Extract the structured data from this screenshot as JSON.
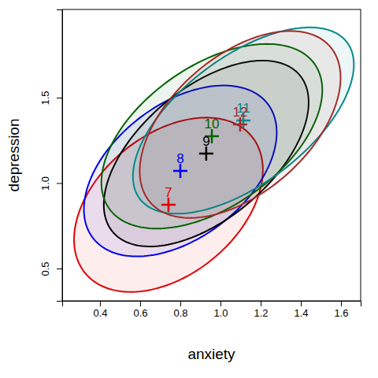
{
  "chart_data": {
    "type": "data_ellipse",
    "x_label": "anxiety",
    "y_label": "depression",
    "xlim": [
      0.212,
      1.698
    ],
    "ylim": [
      0.311,
      2.016
    ],
    "xticks": [
      0.4,
      0.6,
      0.8,
      1.2,
      1.4,
      1.6,
      {
        "value": 1,
        "label": "1.0"
      }
    ],
    "yticks": [
      0.5,
      {
        "value": 1,
        "label": "1.0"
      },
      1.5
    ],
    "marker": "plus",
    "series": [
      {
        "name": "7",
        "color": "#e00000",
        "x": 0.741,
        "y": 0.873,
        "x_halfwidth": 0.47,
        "y_halfheight": 0.51,
        "correlation": 0.4
      },
      {
        "name": "8",
        "color": "#0000ee",
        "x": 0.8,
        "y": 1.071,
        "x_halfwidth": 0.48,
        "y_halfheight": 0.5,
        "correlation": 0.45
      },
      {
        "name": "9",
        "color": "#000000",
        "x": 0.929,
        "y": 1.173,
        "x_halfwidth": 0.51,
        "y_halfheight": 0.544,
        "correlation": 0.55
      },
      {
        "name": "10",
        "color": "#006400",
        "x": 0.957,
        "y": 1.274,
        "x_halfwidth": 0.55,
        "y_halfheight": 0.54,
        "correlation": 0.5
      },
      {
        "name": "11",
        "color": "#008b8b",
        "x": 1.114,
        "y": 1.366,
        "x_halfwidth": 0.55,
        "y_halfheight": 0.545,
        "correlation": 0.6
      },
      {
        "name": "12",
        "color": "#a52a2a",
        "x": 1.098,
        "y": 1.343,
        "x_halfwidth": 0.5,
        "y_halfheight": 0.547,
        "correlation": 0.5
      }
    ]
  }
}
